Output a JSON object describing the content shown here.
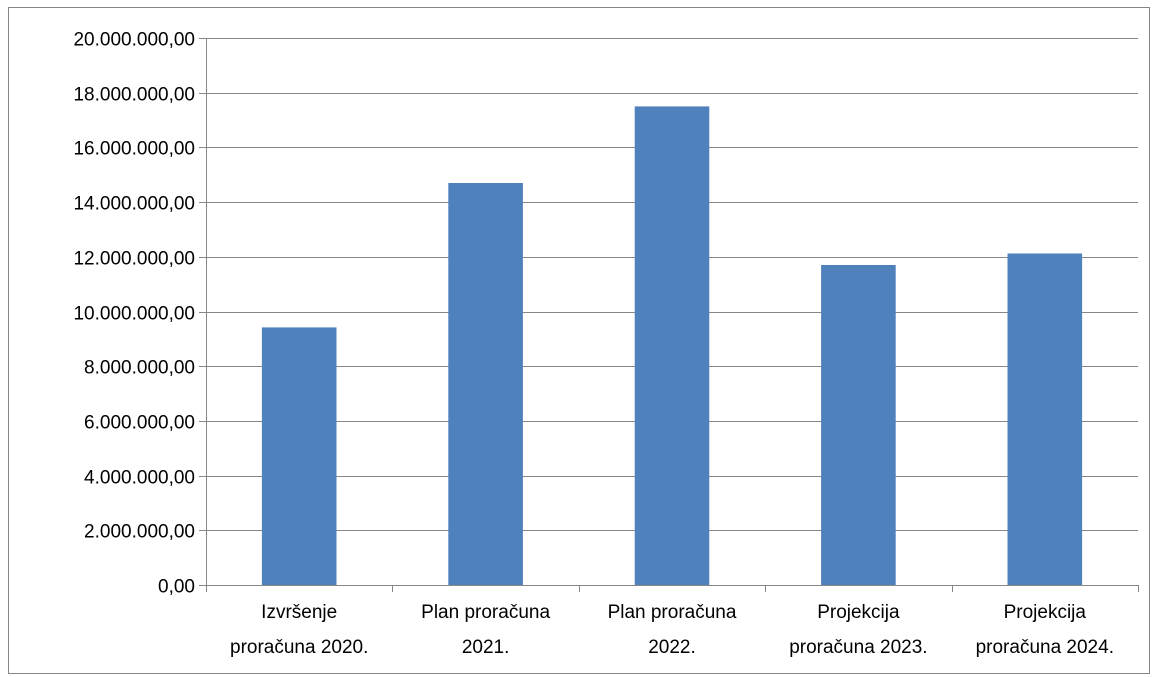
{
  "chart_data": {
    "type": "bar",
    "categories": [
      [
        "Izvršenje",
        "proračuna 2020."
      ],
      [
        "Plan proračuna",
        "2021."
      ],
      [
        "Plan proračuna",
        "2022."
      ],
      [
        "Projekcija",
        "proračuna 2023."
      ],
      [
        "Projekcija",
        "proračuna 2024."
      ]
    ],
    "values": [
      9420000,
      14700000,
      17500000,
      11700000,
      12120000
    ],
    "ylim": [
      0,
      20000000
    ],
    "yticks": [
      0,
      2000000,
      4000000,
      6000000,
      8000000,
      10000000,
      12000000,
      14000000,
      16000000,
      18000000,
      20000000
    ],
    "ytick_labels": [
      "0,00",
      "2.000.000,00",
      "4.000.000,00",
      "6.000.000,00",
      "8.000.000,00",
      "10.000.000,00",
      "12.000.000,00",
      "14.000.000,00",
      "16.000.000,00",
      "18.000.000,00",
      "20.000.000,00"
    ],
    "title": "",
    "xlabel": "",
    "ylabel": "",
    "grid": true,
    "legend": "none",
    "colors": {
      "bar": "#4f81bd",
      "grid": "#868686",
      "axis": "#868686",
      "border": "#868686",
      "text": "#000000"
    }
  }
}
